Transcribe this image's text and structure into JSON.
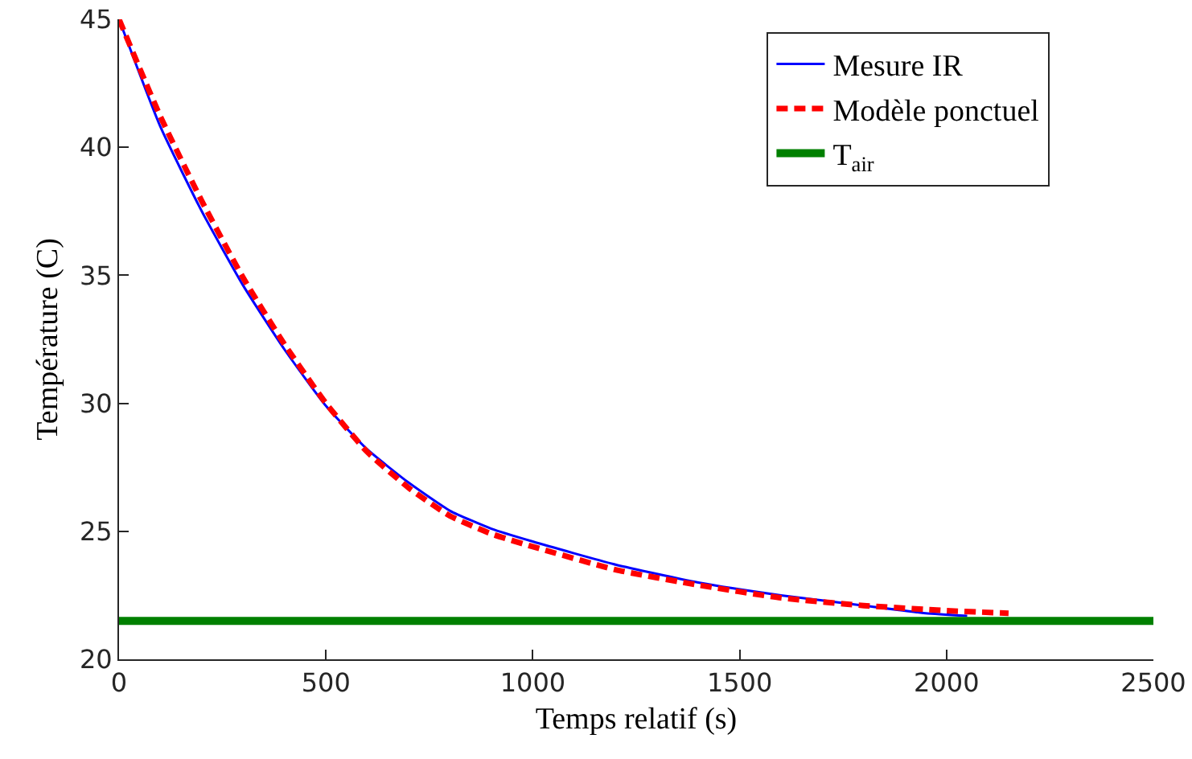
{
  "chart_data": {
    "type": "line",
    "xlabel": "Temps relatif (s)",
    "ylabel": "Température (C)",
    "xlim": [
      0,
      2500
    ],
    "xticks": [
      0,
      500,
      1000,
      1500,
      2000,
      2500
    ],
    "ylim": [
      20,
      45
    ],
    "yticks": [
      20,
      25,
      30,
      35,
      40,
      45
    ],
    "grid": false,
    "legend": "top right",
    "series": [
      {
        "name": "Mesure IR",
        "color": "#0000ff",
        "line_style": "solid",
        "x": [
          0,
          100,
          200,
          300,
          400,
          500,
          600,
          700,
          800,
          900,
          1000,
          1200,
          1400,
          1600,
          1800,
          1950,
          2050
        ],
        "values": [
          45,
          40.8,
          37.5,
          34.6,
          32.1,
          29.9,
          28.2,
          26.9,
          25.8,
          25.1,
          24.6,
          23.7,
          23.0,
          22.5,
          22.1,
          21.8,
          21.7
        ]
      },
      {
        "name": "Modèle ponctuel",
        "color": "#ff0000",
        "line_style": "dashed",
        "x": [
          0,
          100,
          200,
          300,
          400,
          500,
          600,
          700,
          800,
          900,
          1000,
          1200,
          1400,
          1600,
          1800,
          2000,
          2150
        ],
        "values": [
          45,
          41.2,
          37.9,
          34.9,
          32.3,
          30.0,
          28.1,
          26.7,
          25.6,
          24.9,
          24.4,
          23.5,
          22.9,
          22.4,
          22.1,
          21.9,
          21.8
        ]
      },
      {
        "name": "T$_{air}$",
        "color": "#008000",
        "line_style": "solid",
        "x": [
          0,
          2500
        ],
        "values": [
          21.5,
          21.5
        ]
      }
    ]
  }
}
